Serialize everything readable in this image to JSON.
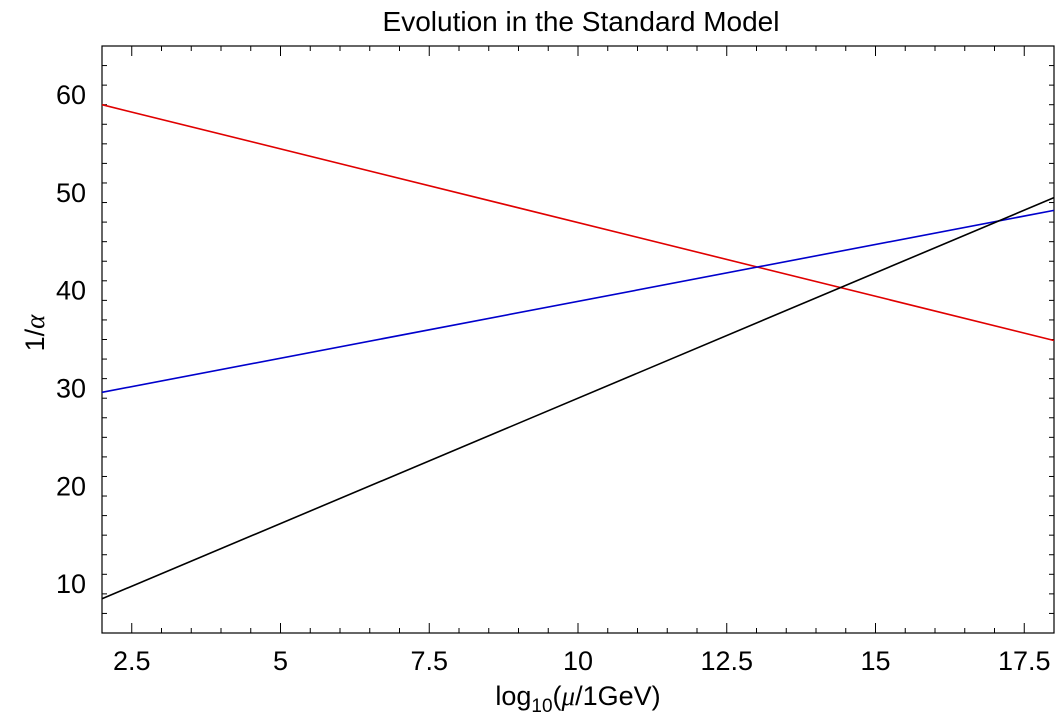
{
  "chart_data": {
    "type": "line",
    "title": "Evolution in the Standard Model",
    "xlabel": {
      "prefix": "log",
      "subscript": "10",
      "open": "(",
      "mu": "μ",
      "rest": "/1GeV)"
    },
    "ylabel": {
      "prefix": "1/",
      "alpha": "α"
    },
    "xlim": [
      2,
      18
    ],
    "ylim": [
      5,
      65
    ],
    "grid": false,
    "x_major_ticks": [
      2.5,
      5,
      7.5,
      10,
      12.5,
      15,
      17.5
    ],
    "x_tick_labels": [
      "2.5",
      "5",
      "7.5",
      "10",
      "12.5",
      "15",
      "17.5"
    ],
    "y_major_ticks": [
      10,
      20,
      30,
      40,
      50,
      60
    ],
    "y_tick_labels": [
      "10",
      "20",
      "30",
      "40",
      "50",
      "60"
    ],
    "series": [
      {
        "color": "#e00000",
        "x": [
          2,
          18
        ],
        "y": [
          59.0,
          34.9
        ]
      },
      {
        "color": "#0000cc",
        "x": [
          2,
          18
        ],
        "y": [
          29.6,
          48.2
        ]
      },
      {
        "color": "#000000",
        "x": [
          2,
          18
        ],
        "y": [
          8.5,
          49.5
        ]
      }
    ]
  }
}
